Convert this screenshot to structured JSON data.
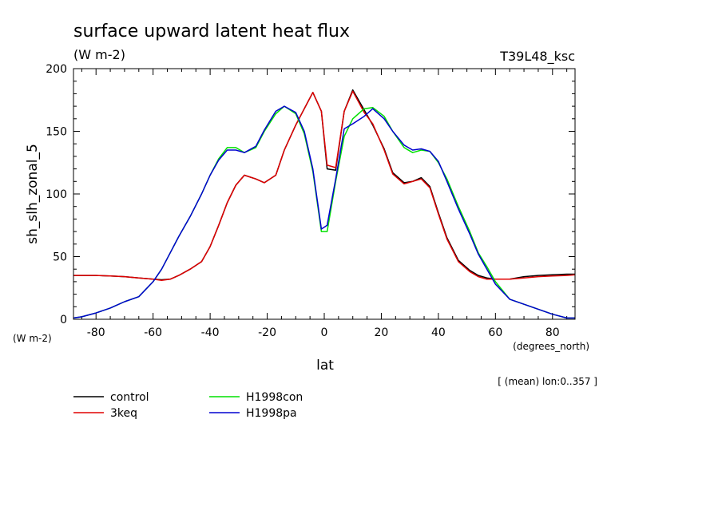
{
  "chart_data": {
    "type": "line",
    "title": "surface upward latent heat flux",
    "units": "(W m-2)",
    "experiment": "T39L48_ksc",
    "ylabel": "sh_slh_zonal_5",
    "y_units": "(W m-2)",
    "xlabel": "lat",
    "x_units": "(degrees_north)",
    "note": "[ (mean) lon:0..357 ]",
    "xlim": [
      -87.9,
      87.9
    ],
    "ylim": [
      0,
      200
    ],
    "x_ticks": [
      -80,
      -60,
      -40,
      -20,
      0,
      20,
      40,
      60,
      80
    ],
    "y_ticks": [
      0,
      50,
      100,
      150,
      200
    ],
    "grid": false,
    "legend_position": "bottom-left",
    "x": [
      -87.9,
      -85,
      -80,
      -75,
      -70,
      -65,
      -60,
      -57,
      -54,
      -51,
      -47,
      -43,
      -40,
      -37,
      -34,
      -31,
      -28,
      -24,
      -21,
      -17,
      -14,
      -10,
      -7,
      -4,
      -1,
      1,
      4,
      7,
      10,
      14,
      17,
      21,
      24,
      28,
      31,
      34,
      37,
      40,
      43,
      47,
      51,
      54,
      57,
      60,
      65,
      70,
      75,
      80,
      85,
      87.9
    ],
    "series": [
      {
        "name": "control",
        "color": "#000000",
        "values": [
          35,
          35,
          35,
          34.5,
          34,
          33,
          32,
          31.5,
          32,
          35,
          40,
          46,
          58,
          75,
          93,
          107,
          115,
          112,
          109,
          115,
          135,
          155,
          168,
          181,
          166,
          120,
          119,
          166,
          183,
          167,
          155,
          136,
          117,
          109,
          110,
          113,
          106,
          85,
          65,
          47,
          39,
          35,
          33,
          32,
          32,
          34,
          35,
          35.5,
          36,
          36
        ]
      },
      {
        "name": "3keq",
        "color": "#e00000",
        "values": [
          35,
          35,
          35,
          34.5,
          34,
          33,
          32,
          31,
          32,
          35,
          40,
          46,
          58,
          75,
          93,
          107,
          115,
          112,
          109,
          115,
          135,
          155,
          168,
          181,
          166,
          123,
          121,
          166,
          182,
          165,
          156,
          135,
          116,
          108,
          110,
          112,
          105,
          84,
          64,
          46,
          38,
          34,
          32,
          32,
          32,
          33,
          34,
          34.5,
          35,
          35.5
        ]
      },
      {
        "name": "H1998con",
        "color": "#00e000",
        "values": [
          1,
          2,
          5,
          9,
          14,
          18,
          30,
          40,
          53,
          66,
          82,
          100,
          115,
          128,
          137,
          137,
          133,
          137,
          150,
          164,
          170,
          164,
          148,
          118,
          70,
          70,
          110,
          146,
          160,
          168,
          169,
          162,
          150,
          137,
          133,
          135,
          134,
          125,
          112,
          90,
          70,
          53,
          42,
          30,
          16,
          12,
          8,
          4,
          1,
          1
        ]
      },
      {
        "name": "H1998pa",
        "color": "#0000d0",
        "values": [
          1,
          2,
          5,
          9,
          14,
          18,
          30,
          40,
          53,
          66,
          82,
          100,
          115,
          127,
          135,
          135,
          133,
          138,
          151,
          166,
          170,
          165,
          150,
          120,
          72,
          75,
          112,
          152,
          156,
          162,
          168,
          160,
          150,
          139,
          135,
          136,
          134,
          126,
          110,
          88,
          68,
          52,
          40,
          28,
          16,
          12,
          8,
          4,
          1,
          1
        ]
      }
    ]
  }
}
